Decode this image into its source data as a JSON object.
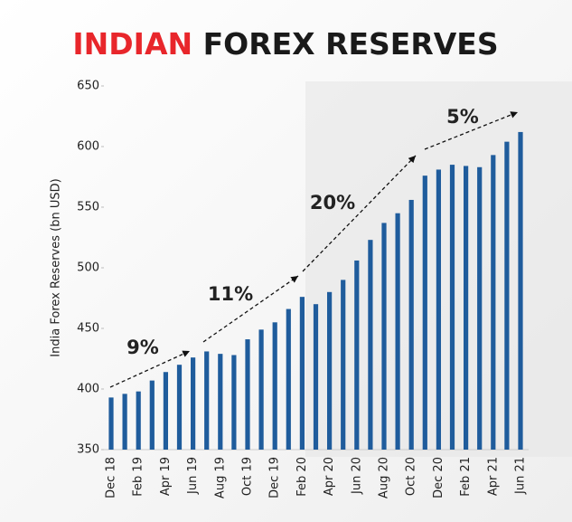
{
  "chart_data": {
    "type": "bar",
    "title": [
      "INDIAN",
      "FOREX RESERVES"
    ],
    "title_colors": [
      "#e8262b",
      "#1a1a1a"
    ],
    "ylabel": "India Forex Reserves (bn USD)",
    "categories": [
      "Dec 18",
      null,
      "Feb 19",
      null,
      "Apr 19",
      null,
      "Jun 19",
      null,
      "Aug 19",
      null,
      "Oct 19",
      null,
      "Dec 19",
      null,
      "Feb 20",
      null,
      "Apr 20",
      null,
      "Jun 20",
      null,
      "Aug 20",
      null,
      "Oct 20",
      null,
      "Dec 20",
      null,
      "Feb 21",
      null,
      "Apr 21",
      null,
      "Jun 21"
    ],
    "values": [
      393,
      396,
      398,
      407,
      414,
      420,
      426,
      431,
      429,
      428,
      441,
      449,
      455,
      466,
      476,
      470,
      480,
      490,
      506,
      523,
      537,
      545,
      556,
      576,
      581,
      585,
      584,
      583,
      593,
      604,
      612
    ],
    "color": "#1f5c9c",
    "ylim": [
      350,
      650
    ],
    "yticks": [
      350,
      400,
      450,
      500,
      550,
      600,
      650
    ],
    "annotations": [
      "9%",
      "11%",
      "20%",
      "5%"
    ]
  }
}
